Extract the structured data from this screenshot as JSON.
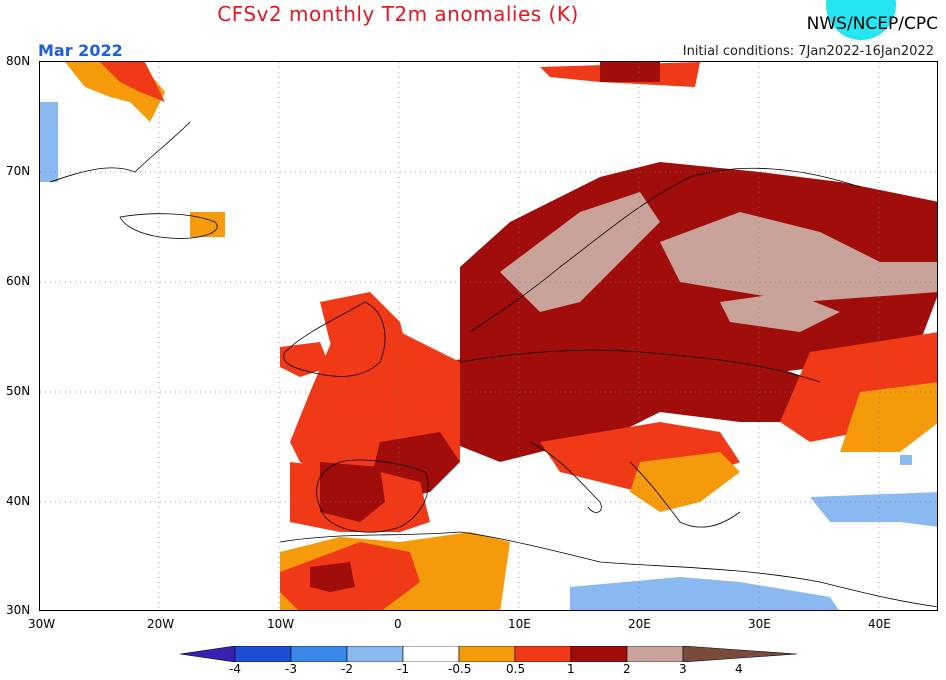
{
  "header": {
    "title": "CFSv2 monthly T2m anomalies (K)",
    "agency": "NWS/NCEP/CPC",
    "valid_month": "Mar 2022",
    "initial_conditions": "Initial conditions: 7Jan2022-16Jan2022"
  },
  "axes": {
    "lat_labels": [
      "80N",
      "70N",
      "60N",
      "50N",
      "40N",
      "30N"
    ],
    "lon_labels": [
      "30W",
      "20W",
      "10W",
      "0",
      "10E",
      "20E",
      "30E",
      "40E"
    ]
  },
  "colorbar": {
    "labels": [
      "-4",
      "-3",
      "-2",
      "-1",
      "-0.5",
      "0.5",
      "1",
      "2",
      "3",
      "4"
    ],
    "colors": [
      "#3a1fb3",
      "#1c4fd6",
      "#3a88e8",
      "#8ab8f0",
      "#ffffff",
      "#f59a0a",
      "#f03a17",
      "#a00d0a",
      "#c9a39a",
      "#7a4a3a"
    ]
  },
  "colors": {
    "warm_1": "#f59a0a",
    "warm_2": "#f03a17",
    "warm_3": "#a00d0a",
    "warm_4": "#c9a39a",
    "cool_1": "#8ab8f0"
  }
}
